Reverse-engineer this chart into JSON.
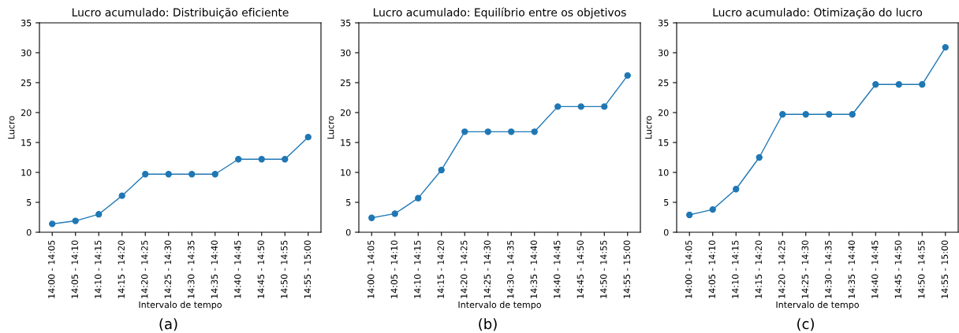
{
  "chart_data": [
    {
      "type": "line",
      "title": "Lucro acumulado: Distribuição eficiente",
      "xlabel": "Intervalo de tempo",
      "ylabel": "Lucro",
      "categories": [
        "14:00 - 14:05",
        "14:05 - 14:10",
        "14:10 - 14:15",
        "14:15 - 14:20",
        "14:20 - 14:25",
        "14:25 - 14:30",
        "14:30 - 14:35",
        "14:35 - 14:40",
        "14:40 - 14:45",
        "14:45 - 14:50",
        "14:50 - 14:55",
        "14:55 - 15:00"
      ],
      "series": [
        {
          "color": "#1f77b4",
          "values": [
            1.4,
            1.9,
            3.0,
            6.1,
            9.7,
            9.7,
            9.7,
            9.7,
            12.2,
            12.2,
            12.2,
            15.9
          ]
        }
      ],
      "ylim": [
        0,
        35
      ],
      "yticks": [
        0,
        5,
        10,
        15,
        20,
        25,
        30,
        35
      ],
      "marker": "circle",
      "line_style": "solid",
      "grid": false,
      "legend": false,
      "annotations": [
        "(a)"
      ]
    },
    {
      "type": "line",
      "title": "Lucro acumulado: Equilíbrio entre os objetivos",
      "xlabel": "Intervalo de tempo",
      "ylabel": "Lucro",
      "categories": [
        "14:00 - 14:05",
        "14:05 - 14:10",
        "14:10 - 14:15",
        "14:15 - 14:20",
        "14:20 - 14:25",
        "14:25 - 14:30",
        "14:30 - 14:35",
        "14:35 - 14:40",
        "14:40 - 14:45",
        "14:45 - 14:50",
        "14:50 - 14:55",
        "14:55 - 15:00"
      ],
      "series": [
        {
          "color": "#1f77b4",
          "values": [
            2.4,
            3.1,
            5.7,
            10.4,
            16.8,
            16.8,
            16.8,
            16.8,
            21.0,
            21.0,
            21.0,
            26.2
          ]
        }
      ],
      "ylim": [
        0,
        35
      ],
      "yticks": [
        0,
        5,
        10,
        15,
        20,
        25,
        30,
        35
      ],
      "marker": "circle",
      "line_style": "solid",
      "grid": false,
      "legend": false,
      "annotations": [
        "(b)"
      ]
    },
    {
      "type": "line",
      "title": "Lucro acumulado: Otimização do lucro",
      "xlabel": "Intervalo de tempo",
      "ylabel": "Lucro",
      "categories": [
        "14:00 - 14:05",
        "14:05 - 14:10",
        "14:10 - 14:15",
        "14:15 - 14:20",
        "14:20 - 14:25",
        "14:25 - 14:30",
        "14:30 - 14:35",
        "14:35 - 14:40",
        "14:40 - 14:45",
        "14:45 - 14:50",
        "14:50 - 14:55",
        "14:55 - 15:00"
      ],
      "series": [
        {
          "color": "#1f77b4",
          "values": [
            2.9,
            3.8,
            7.2,
            12.5,
            19.7,
            19.7,
            19.7,
            19.7,
            24.7,
            24.7,
            24.7,
            30.9
          ]
        }
      ],
      "ylim": [
        0,
        35
      ],
      "yticks": [
        0,
        5,
        10,
        15,
        20,
        25,
        30,
        35
      ],
      "marker": "circle",
      "line_style": "solid",
      "grid": false,
      "legend": false,
      "annotations": [
        "(c)"
      ]
    }
  ]
}
